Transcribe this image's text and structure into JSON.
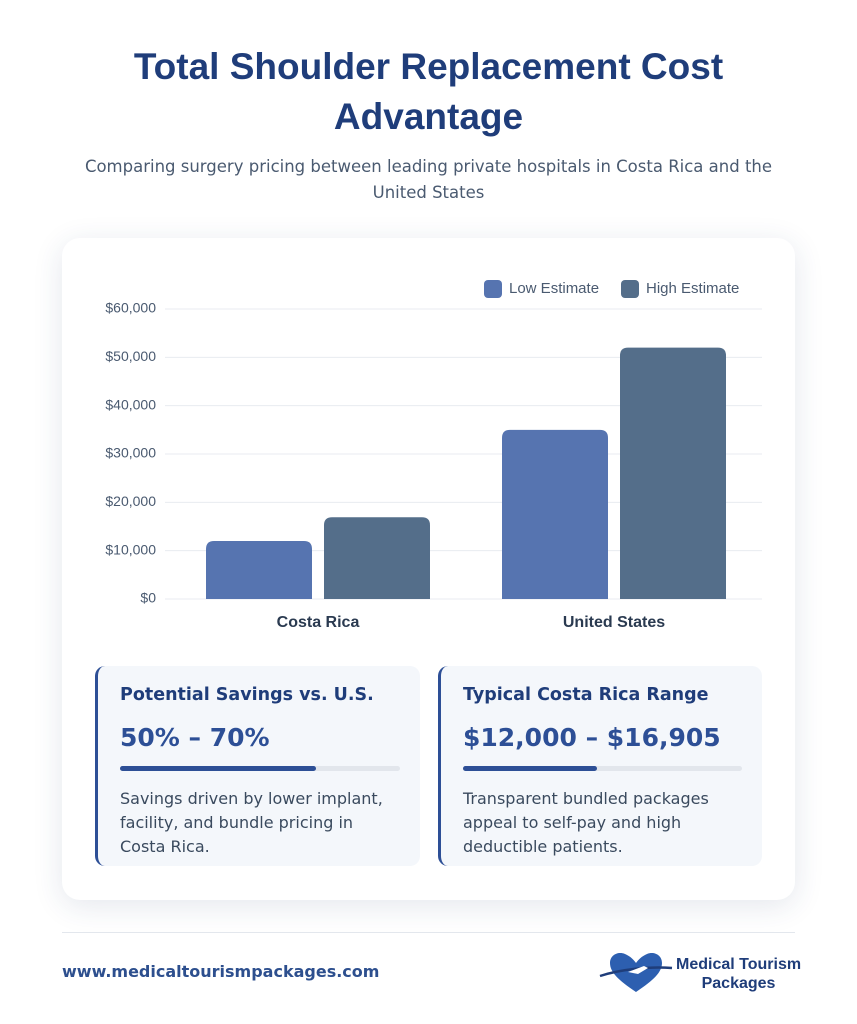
{
  "header": {
    "title": "Total Shoulder Replacement Cost Advantage",
    "subtitle": "Comparing surgery pricing between leading private hospitals in Costa Rica and the United States"
  },
  "chart_data": {
    "type": "bar",
    "categories": [
      "Costa Rica",
      "United States"
    ],
    "series": [
      {
        "name": "Low Estimate",
        "color": "#5674b0",
        "values": [
          12000,
          35000
        ]
      },
      {
        "name": "High Estimate",
        "color": "#546e8a",
        "values": [
          16905,
          52000
        ]
      }
    ],
    "ylim": [
      0,
      60000
    ],
    "yticks": [
      {
        "value": 0,
        "label": "$0"
      },
      {
        "value": 10000,
        "label": "$10,000"
      },
      {
        "value": 20000,
        "label": "$20,000"
      },
      {
        "value": 30000,
        "label": "$30,000"
      },
      {
        "value": 40000,
        "label": "$40,000"
      },
      {
        "value": 50000,
        "label": "$50,000"
      },
      {
        "value": 60000,
        "label": "$60,000"
      }
    ],
    "grid": true,
    "legend": "upper right"
  },
  "cards": [
    {
      "title": "Potential Savings vs. U.S.",
      "value": "50% – 70%",
      "text": "Savings driven by lower implant, facility, and bundle pricing in Costa Rica."
    },
    {
      "title": "Typical Costa Rica Range",
      "value": "$12,000 – $16,905",
      "text": "Transparent bundled packages appeal to self-pay and high deductible patients."
    }
  ],
  "footer": {
    "url": "www.medicaltourismpackages.com",
    "logo_lines": [
      "Medical Tourism",
      "Packages"
    ]
  }
}
